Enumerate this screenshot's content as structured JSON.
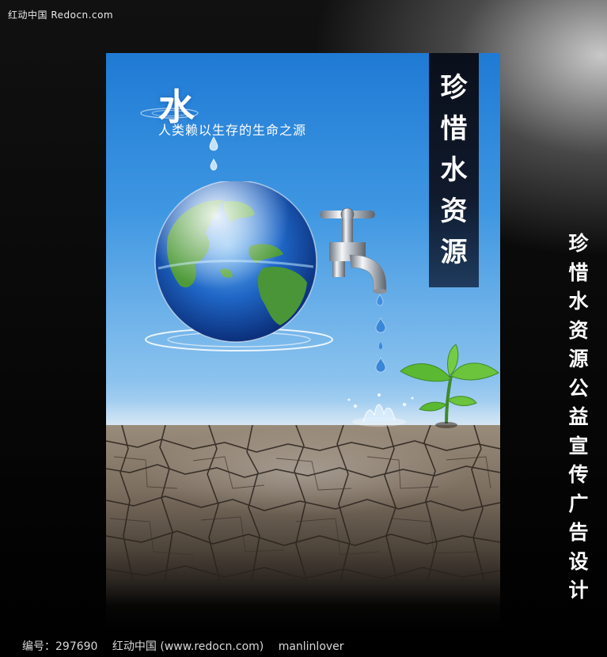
{
  "watermark": "红动中国 Redocn.com",
  "poster": {
    "headline_char": "水",
    "subtitle": "人类赖以生存的生命之源",
    "banner_chars": [
      "珍",
      "惜",
      "水",
      "资",
      "源"
    ]
  },
  "side_caption_chars": [
    "珍",
    "惜",
    "水",
    "资",
    "源",
    "公",
    "益",
    "宣",
    "传",
    "广",
    "告",
    "设",
    "计"
  ],
  "footer": {
    "id_text": "编号：297690",
    "site_text": "红动中国 (www.redocn.com)",
    "author": "manlinlover"
  },
  "colors": {
    "sky_top": "#1f7ad4",
    "ground": "#7e7061",
    "leaf": "#5bb832"
  },
  "icons": [
    "globe-icon",
    "faucet-icon",
    "sprout-icon",
    "water-drop-icon",
    "splash-icon"
  ]
}
